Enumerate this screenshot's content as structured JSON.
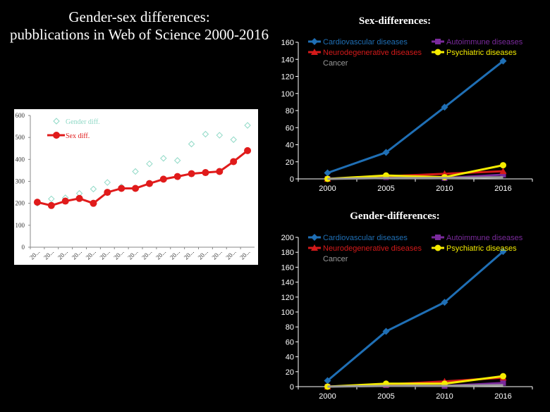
{
  "slide": {
    "title_line1": "Gender-sex differences:",
    "title_line2": "pubblications in Web of Science 2000-2016"
  },
  "colors": {
    "background": "#000000",
    "gender_marker": "#8fd9c6",
    "sex_series": "#e01b1b",
    "cardiovascular": "#1f6fb5",
    "autoimmune": "#7a2a9c",
    "neurodegenerative": "#d41a1a",
    "psychiatric": "#f5ec00",
    "cancer": "#9a9a9a"
  },
  "chart_data": [
    {
      "id": "overall",
      "type": "line",
      "title": "",
      "xlabel": "",
      "ylabel": "",
      "ylim": [
        0,
        600
      ],
      "yticks": [
        0,
        100,
        200,
        300,
        400,
        500,
        600
      ],
      "categories": [
        "20...",
        "20...",
        "20...",
        "20...",
        "20...",
        "20...",
        "20...",
        "20...",
        "20...",
        "20...",
        "20...",
        "20...",
        "20...",
        "20...",
        "20...",
        "20..."
      ],
      "grid": false,
      "legend_position": "top-left",
      "series": [
        {
          "name": "Gender diff.",
          "style": "hollow-diamond",
          "values": [
            200,
            220,
            225,
            245,
            265,
            295,
            275,
            345,
            380,
            405,
            395,
            470,
            515,
            510,
            490,
            555
          ]
        },
        {
          "name": "Sex diff.",
          "style": "line-circle",
          "values": [
            205,
            190,
            210,
            222,
            200,
            250,
            268,
            268,
            290,
            310,
            322,
            335,
            340,
            345,
            390,
            440
          ]
        }
      ]
    },
    {
      "id": "sex",
      "type": "line",
      "title": "Sex-differences:",
      "xlabel": "",
      "ylabel": "",
      "ylim": [
        0,
        160
      ],
      "yticks": [
        0,
        20,
        40,
        60,
        80,
        100,
        120,
        140,
        160
      ],
      "categories": [
        "2000",
        "2005",
        "2010",
        "2016"
      ],
      "grid": false,
      "legend_position": "top",
      "series": [
        {
          "name": "Cardiovascular diseases",
          "marker": "diamond",
          "values": [
            7,
            31,
            84,
            138
          ]
        },
        {
          "name": "Autoimmune diseases",
          "marker": "square",
          "values": [
            0,
            2,
            1,
            5
          ]
        },
        {
          "name": "Neurodegenerative diseases",
          "marker": "triangle",
          "values": [
            0,
            3,
            6,
            9
          ]
        },
        {
          "name": "Psychiatric diseases",
          "marker": "circle",
          "values": [
            0,
            4,
            2,
            16
          ]
        },
        {
          "name": "Cancer",
          "marker": "none",
          "values": [
            0,
            1,
            1,
            2
          ]
        }
      ]
    },
    {
      "id": "gender",
      "type": "line",
      "title": "Gender-differences:",
      "xlabel": "",
      "ylabel": "",
      "ylim": [
        0,
        200
      ],
      "yticks": [
        0,
        20,
        40,
        60,
        80,
        100,
        120,
        140,
        160,
        180,
        200
      ],
      "categories": [
        "2000",
        "2005",
        "2010",
        "2016"
      ],
      "grid": false,
      "legend_position": "top",
      "series": [
        {
          "name": "Cardiovascular diseases",
          "marker": "diamond",
          "values": [
            8,
            74,
            113,
            181
          ]
        },
        {
          "name": "Autoimmune diseases",
          "marker": "square",
          "values": [
            0,
            2,
            1,
            5
          ]
        },
        {
          "name": "Neurodegenerative diseases",
          "marker": "triangle",
          "values": [
            0,
            3,
            7,
            12
          ]
        },
        {
          "name": "Psychiatric diseases",
          "marker": "circle",
          "values": [
            0,
            4,
            4,
            14
          ]
        },
        {
          "name": "Cancer",
          "marker": "none",
          "values": [
            0,
            1,
            1,
            2
          ]
        }
      ]
    }
  ]
}
